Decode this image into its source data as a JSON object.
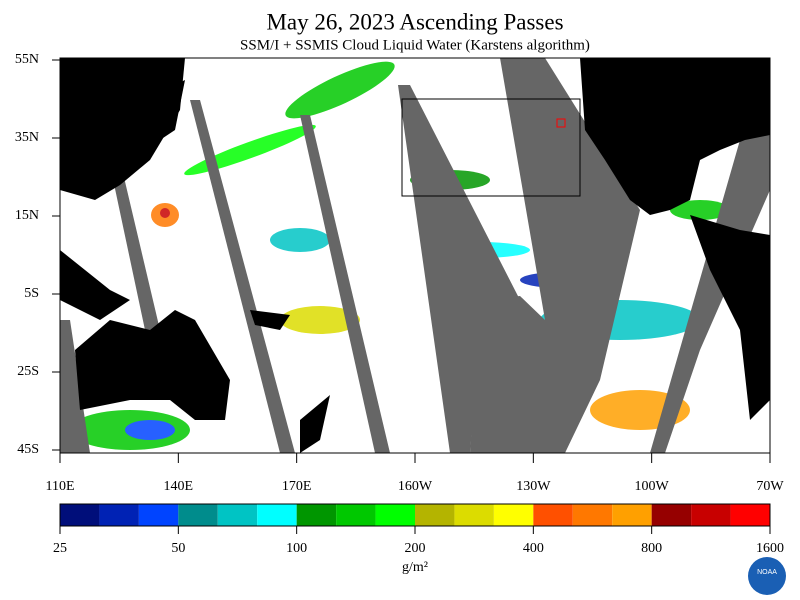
{
  "header": {
    "title": "May 26, 2023  Ascending Passes",
    "subtitle": "SSM/I + SSMIS Cloud Liquid Water (Karstens algorithm)"
  },
  "map": {
    "lat_labels": [
      "55N",
      "35N",
      "15N",
      "5S",
      "25S",
      "45S"
    ],
    "lon_labels": [
      "110E",
      "140E",
      "170E",
      "160W",
      "130W",
      "100W",
      "70W"
    ]
  },
  "colorbar": {
    "labels": [
      "25",
      "50",
      "100",
      "200",
      "400",
      "800",
      "1600"
    ],
    "unit": "g/m²",
    "colors": [
      "#000e7a",
      "#0022b4",
      "#0044ff",
      "#008c8c",
      "#00c4c4",
      "#00ffff",
      "#009600",
      "#00c800",
      "#00ff00",
      "#b4b400",
      "#dcdc00",
      "#ffff00",
      "#ff5000",
      "#ff7800",
      "#ffa000",
      "#960000",
      "#c80000",
      "#ff0000"
    ]
  },
  "logo": {
    "label": "NOAA"
  }
}
